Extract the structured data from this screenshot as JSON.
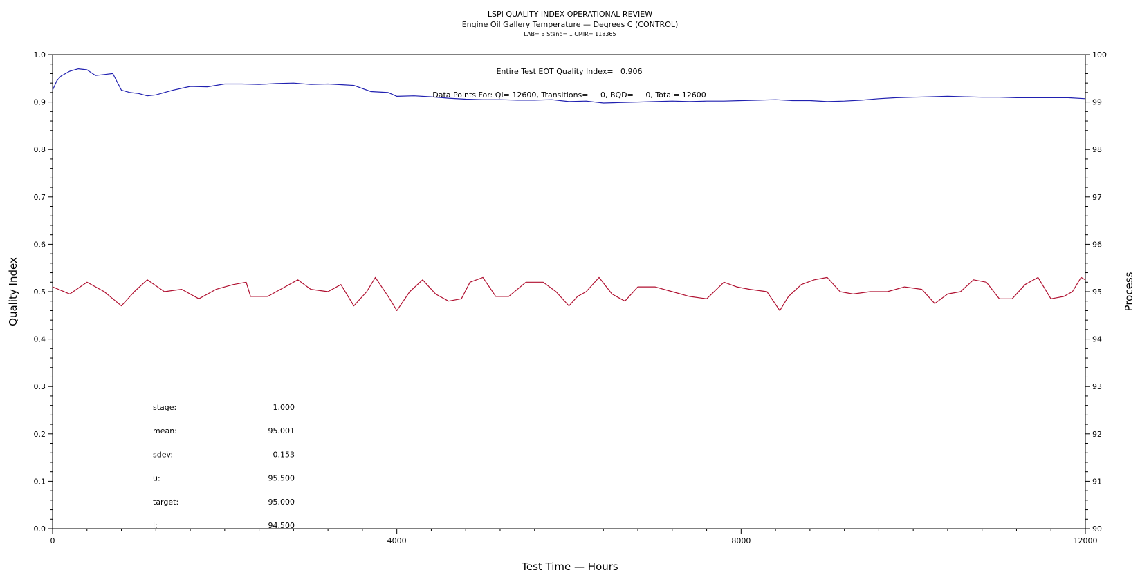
{
  "chart_data": {
    "type": "line",
    "title": "LSPI QUALITY INDEX OPERATIONAL REVIEW",
    "subtitle": "Engine Oil Gallery Temperature — Degrees C (CONTROL)",
    "meta": "LAB= B Stand= 1 CMIR= 118365",
    "xlabel": "Test Time — Hours",
    "ylabel_left": "Quality Index",
    "ylabel_right": "Process",
    "xlim": [
      0,
      12000
    ],
    "ylim_left": [
      0.0,
      1.0
    ],
    "ylim_right": [
      90,
      100
    ],
    "x_ticks": [
      "0",
      "4000",
      "8000",
      "12000"
    ],
    "y_ticks_left": [
      "0.0",
      "0.1",
      "0.2",
      "0.3",
      "0.4",
      "0.5",
      "0.6",
      "0.7",
      "0.8",
      "0.9",
      "1.0"
    ],
    "y_ticks_right": [
      "90",
      "91",
      "92",
      "93",
      "94",
      "95",
      "96",
      "97",
      "98",
      "99",
      "100"
    ],
    "grid": false,
    "annotations": {
      "quality_index": "Entire Test EOT Quality Index=   0.906",
      "data_points": "Data Points For: QI= 12600, Transitions=     0, BQD=     0, Total= 12600"
    },
    "stats": [
      {
        "label": "stage:",
        "value": "1.000"
      },
      {
        "label": "mean:",
        "value": "95.001"
      },
      {
        "label": "sdev:",
        "value": "0.153"
      },
      {
        "label": "u:",
        "value": "95.500"
      },
      {
        "label": "target:",
        "value": "95.000"
      },
      {
        "label": "l:",
        "value": "94.500"
      }
    ],
    "series": [
      {
        "axis": "left",
        "color": "#2020b0",
        "x": [
          0,
          50,
          100,
          200,
          300,
          400,
          500,
          600,
          700,
          800,
          900,
          1000,
          1100,
          1200,
          1400,
          1600,
          1800,
          2000,
          2200,
          2400,
          2600,
          2800,
          3000,
          3200,
          3400,
          3500,
          3700,
          3900,
          4000,
          4200,
          4400,
          4600,
          4800,
          5000,
          5200,
          5400,
          5600,
          5800,
          6000,
          6200,
          6400,
          6600,
          6800,
          7000,
          7200,
          7400,
          7600,
          7800,
          8000,
          8200,
          8400,
          8600,
          8800,
          9000,
          9200,
          9400,
          9600,
          9800,
          10000,
          10200,
          10400,
          10600,
          10800,
          11000,
          11200,
          11400,
          11600,
          11800,
          12000
        ],
        "values": [
          0.925,
          0.945,
          0.955,
          0.965,
          0.97,
          0.968,
          0.956,
          0.958,
          0.96,
          0.925,
          0.92,
          0.918,
          0.913,
          0.915,
          0.925,
          0.933,
          0.932,
          0.938,
          0.938,
          0.937,
          0.939,
          0.94,
          0.937,
          0.938,
          0.936,
          0.935,
          0.922,
          0.92,
          0.912,
          0.913,
          0.911,
          0.908,
          0.906,
          0.905,
          0.905,
          0.904,
          0.904,
          0.905,
          0.901,
          0.902,
          0.898,
          0.899,
          0.9,
          0.901,
          0.902,
          0.901,
          0.902,
          0.902,
          0.903,
          0.904,
          0.905,
          0.903,
          0.903,
          0.901,
          0.902,
          0.904,
          0.907,
          0.909,
          0.91,
          0.911,
          0.912,
          0.911,
          0.91,
          0.91,
          0.909,
          0.909,
          0.909,
          0.909,
          0.907
        ]
      },
      {
        "axis": "right",
        "color": "#b01030",
        "x": [
          0,
          200,
          400,
          600,
          700,
          800,
          950,
          1100,
          1300,
          1500,
          1700,
          1900,
          2100,
          2250,
          2300,
          2500,
          2700,
          2850,
          3000,
          3200,
          3350,
          3500,
          3650,
          3750,
          3900,
          4000,
          4150,
          4300,
          4450,
          4600,
          4750,
          4850,
          5000,
          5150,
          5300,
          5500,
          5700,
          5850,
          6000,
          6100,
          6200,
          6350,
          6500,
          6650,
          6800,
          7000,
          7200,
          7400,
          7600,
          7800,
          7950,
          8100,
          8300,
          8450,
          8550,
          8700,
          8850,
          9000,
          9150,
          9300,
          9500,
          9700,
          9900,
          10100,
          10250,
          10400,
          10550,
          10700,
          10850,
          11000,
          11150,
          11300,
          11450,
          11600,
          11750,
          11850,
          11950,
          12000
        ],
        "values": [
          95.1,
          94.95,
          95.2,
          95.0,
          94.85,
          94.7,
          95.0,
          95.25,
          95.0,
          95.05,
          94.85,
          95.05,
          95.15,
          95.2,
          94.9,
          94.9,
          95.1,
          95.25,
          95.05,
          95.0,
          95.15,
          94.7,
          95.0,
          95.3,
          94.9,
          94.6,
          95.0,
          95.25,
          94.95,
          94.8,
          94.85,
          95.2,
          95.3,
          94.9,
          94.9,
          95.2,
          95.2,
          95.0,
          94.7,
          94.9,
          95.0,
          95.3,
          94.95,
          94.8,
          95.1,
          95.1,
          95.0,
          94.9,
          94.85,
          95.2,
          95.1,
          95.05,
          95.0,
          94.6,
          94.9,
          95.15,
          95.25,
          95.3,
          95.0,
          94.95,
          95.0,
          95.0,
          95.1,
          95.05,
          94.75,
          94.95,
          95.0,
          95.25,
          95.2,
          94.85,
          94.85,
          95.15,
          95.3,
          94.85,
          94.9,
          95.0,
          95.3,
          95.25
        ]
      }
    ]
  }
}
